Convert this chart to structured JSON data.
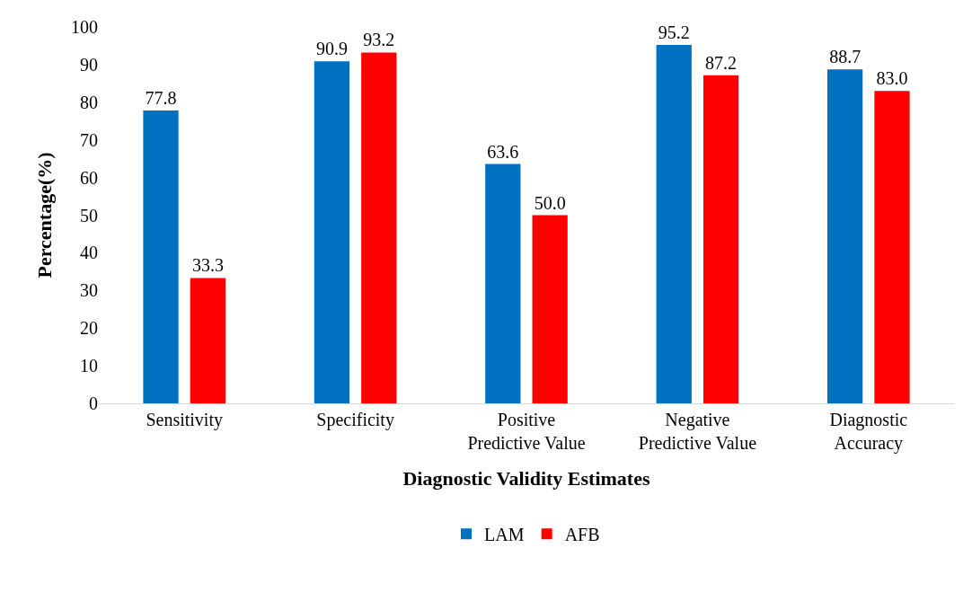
{
  "chart_data": {
    "type": "bar",
    "xlabel": "Diagnostic Validity Estimates",
    "ylabel": "Percentage(%)",
    "categories": [
      "Sensitivity",
      "Specificity",
      "Positive\nPredictive Value",
      "Negative\nPredictive Value",
      "Diagnostic\nAccuracy"
    ],
    "series": [
      {
        "name": "LAM",
        "color": "#0070c0",
        "values": [
          77.8,
          90.9,
          63.6,
          95.2,
          88.7
        ],
        "value_labels": [
          "77.8",
          "90.9",
          "63.6",
          "95.2",
          "88.7"
        ]
      },
      {
        "name": "AFB",
        "color": "#ff0000",
        "values": [
          33.3,
          93.2,
          50.0,
          87.2,
          83.0
        ],
        "value_labels": [
          "33.3",
          "93.2",
          "50.0",
          "87.2",
          "83.0"
        ]
      }
    ],
    "ylim": [
      0,
      100
    ],
    "yticks": [
      0,
      10,
      20,
      30,
      40,
      50,
      60,
      70,
      80,
      90,
      100
    ],
    "legend": "bottom"
  }
}
